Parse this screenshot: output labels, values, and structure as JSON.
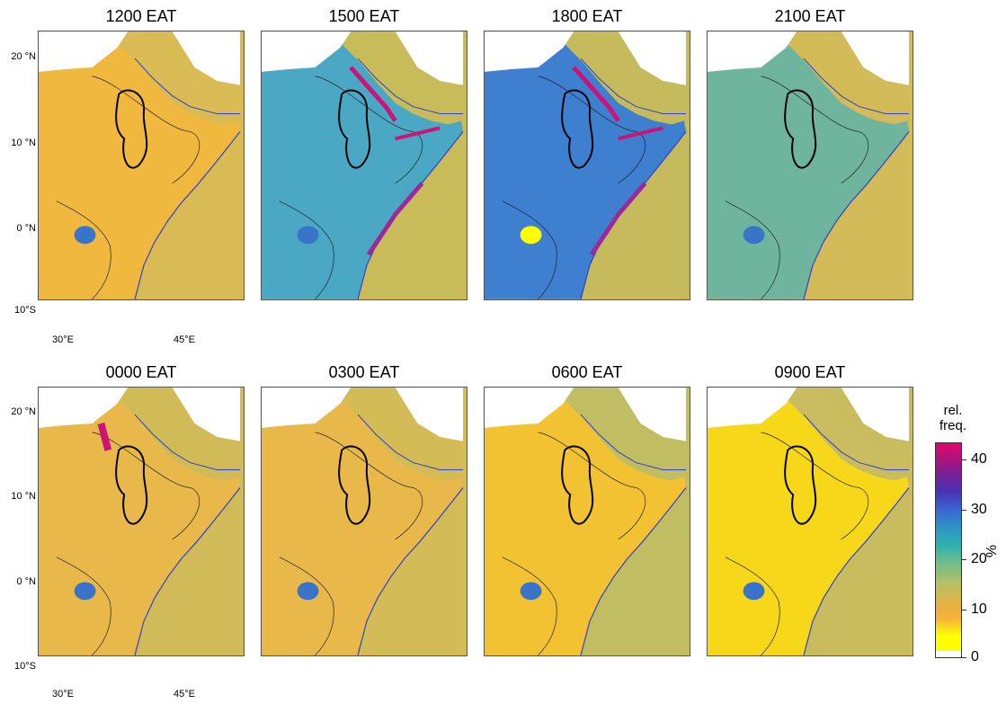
{
  "panels": [
    {
      "title": "1200 EAT",
      "ocean": "#d9bb55",
      "land": "#f0b83e",
      "hot": []
    },
    {
      "title": "1500 EAT",
      "ocean": "#c8bb5a",
      "land": "#4aa8c4",
      "hot": [
        "rift",
        "redsea",
        "somali"
      ]
    },
    {
      "title": "1800 EAT",
      "ocean": "#c5bb5c",
      "land": "#3e7fd0",
      "hot": [
        "rift",
        "redsea",
        "somali",
        "lake"
      ]
    },
    {
      "title": "2100 EAT",
      "ocean": "#d2bb58",
      "land": "#6fb49d",
      "hot": []
    },
    {
      "title": "0000 EAT",
      "ocean": "#d0bb58",
      "land": "#e9b84a",
      "hot": [
        "sudan"
      ]
    },
    {
      "title": "0300 EAT",
      "ocean": "#d3bb57",
      "land": "#e9b84a",
      "hot": []
    },
    {
      "title": "0600 EAT",
      "ocean": "#c0bd63",
      "land": "#f2c232",
      "hot": []
    },
    {
      "title": "0900 EAT",
      "ocean": "#c9bc5f",
      "land": "#f6d71a",
      "hot": []
    }
  ],
  "axes": {
    "y_labels": [
      "20 °N",
      "10 °N",
      "0 °N",
      "10°S"
    ],
    "x_labels": [
      "30°E",
      "45°E"
    ]
  },
  "colorbar": {
    "title_line1": "rel.",
    "title_line2": "freq.",
    "unit": "%",
    "ticks": [
      "40",
      "30",
      "20",
      "10",
      "0"
    ],
    "range": [
      0,
      43
    ]
  }
}
